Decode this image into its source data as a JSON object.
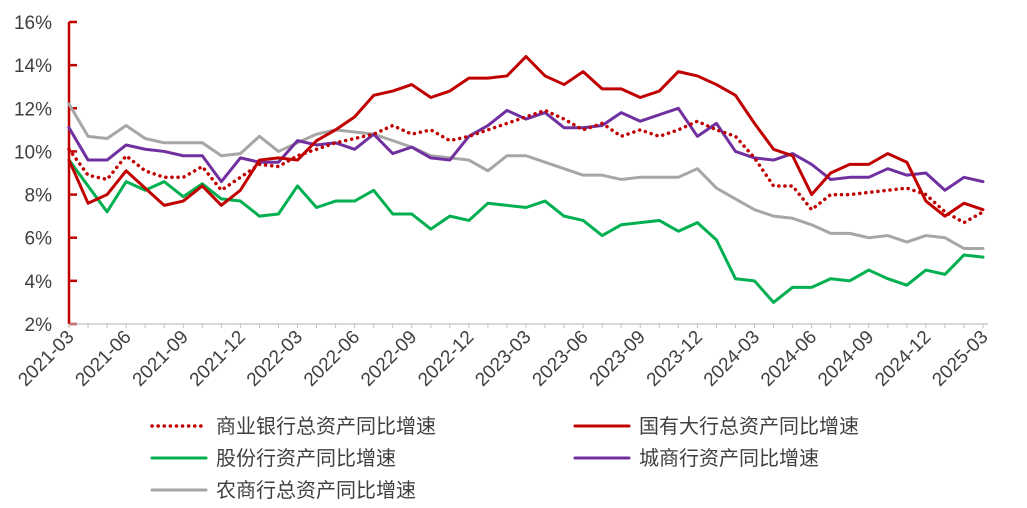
{
  "chart_data": {
    "type": "line",
    "title": "",
    "xlabel": "",
    "ylabel": "",
    "ylim": [
      0.02,
      0.16
    ],
    "y_ticks": [
      "2%",
      "4%",
      "6%",
      "8%",
      "10%",
      "12%",
      "14%",
      "16%"
    ],
    "y_tick_values": [
      0.02,
      0.04,
      0.06,
      0.08,
      0.1,
      0.12,
      0.14,
      0.16
    ],
    "x_tick_labels": [
      "2021-03",
      "2021-06",
      "2021-09",
      "2021-12",
      "2022-03",
      "2022-06",
      "2022-09",
      "2022-12",
      "2023-03",
      "2023-06",
      "2023-09",
      "2023-12",
      "2024-03",
      "2024-06",
      "2024-09",
      "2024-12",
      "2025-03"
    ],
    "x": [
      "2021-03",
      "2021-04",
      "2021-05",
      "2021-06",
      "2021-07",
      "2021-08",
      "2021-09",
      "2021-10",
      "2021-11",
      "2021-12",
      "2022-01",
      "2022-02",
      "2022-03",
      "2022-04",
      "2022-05",
      "2022-06",
      "2022-07",
      "2022-08",
      "2022-09",
      "2022-10",
      "2022-11",
      "2022-12",
      "2023-01",
      "2023-02",
      "2023-03",
      "2023-04",
      "2023-05",
      "2023-06",
      "2023-07",
      "2023-08",
      "2023-09",
      "2023-10",
      "2023-11",
      "2023-12",
      "2024-01",
      "2024-02",
      "2024-03",
      "2024-04",
      "2024-05",
      "2024-06",
      "2024-07",
      "2024-08",
      "2024-09",
      "2024-10",
      "2024-11",
      "2024-12",
      "2025-01",
      "2025-02",
      "2025-03"
    ],
    "grid": false,
    "legend_position": "bottom",
    "series": [
      {
        "name": "商业银行总资产同比增速",
        "color": "#C00000",
        "style": "dotted",
        "values": [
          0.101,
          0.089,
          0.087,
          0.098,
          0.091,
          0.088,
          0.088,
          0.093,
          0.082,
          0.088,
          0.094,
          0.093,
          0.098,
          0.101,
          0.104,
          0.106,
          0.108,
          0.112,
          0.108,
          0.11,
          0.105,
          0.107,
          0.11,
          0.113,
          0.116,
          0.119,
          0.115,
          0.11,
          0.113,
          0.107,
          0.11,
          0.107,
          0.11,
          0.114,
          0.11,
          0.107,
          0.097,
          0.084,
          0.084,
          0.073,
          0.08,
          0.08,
          0.081,
          0.082,
          0.083,
          0.08,
          0.072,
          0.067,
          0.072
        ]
      },
      {
        "name": "国有大行总资产同比增速",
        "color": "#C00000",
        "style": "solid",
        "values": [
          0.096,
          0.076,
          0.08,
          0.091,
          0.083,
          0.075,
          0.077,
          0.084,
          0.075,
          0.082,
          0.096,
          0.097,
          0.096,
          0.105,
          0.11,
          0.116,
          0.126,
          0.128,
          0.131,
          0.125,
          0.128,
          0.134,
          0.134,
          0.135,
          0.144,
          0.135,
          0.131,
          0.137,
          0.129,
          0.129,
          0.125,
          0.128,
          0.137,
          0.135,
          0.131,
          0.126,
          0.113,
          0.101,
          0.098,
          0.08,
          0.09,
          0.094,
          0.094,
          0.099,
          0.095,
          0.077,
          0.07,
          0.076,
          0.073
        ]
      },
      {
        "name": "股份行资产同比增速",
        "color": "#00B050",
        "style": "solid",
        "values": [
          0.096,
          0.084,
          0.072,
          0.086,
          0.082,
          0.086,
          0.079,
          0.085,
          0.078,
          0.077,
          0.07,
          0.071,
          0.084,
          0.074,
          0.077,
          0.077,
          0.082,
          0.071,
          0.071,
          0.064,
          0.07,
          0.068,
          0.076,
          0.075,
          0.074,
          0.077,
          0.07,
          0.068,
          0.061,
          0.066,
          0.067,
          0.068,
          0.063,
          0.067,
          0.059,
          0.041,
          0.04,
          0.03,
          0.037,
          0.037,
          0.041,
          0.04,
          0.045,
          0.041,
          0.038,
          0.045,
          0.043,
          0.052,
          0.051
        ]
      },
      {
        "name": "城商行资产同比增速",
        "color": "#7030A0",
        "style": "solid",
        "values": [
          0.111,
          0.096,
          0.096,
          0.103,
          0.101,
          0.1,
          0.098,
          0.098,
          0.086,
          0.097,
          0.095,
          0.095,
          0.105,
          0.103,
          0.104,
          0.101,
          0.108,
          0.099,
          0.102,
          0.097,
          0.096,
          0.107,
          0.112,
          0.119,
          0.115,
          0.118,
          0.111,
          0.111,
          0.112,
          0.118,
          0.114,
          0.117,
          0.12,
          0.107,
          0.113,
          0.1,
          0.097,
          0.096,
          0.099,
          0.094,
          0.087,
          0.088,
          0.088,
          0.092,
          0.089,
          0.09,
          0.082,
          0.088,
          0.086
        ]
      },
      {
        "name": "农商行总资产同比增速",
        "color": "#A6A6A6",
        "style": "solid",
        "values": [
          0.122,
          0.107,
          0.106,
          0.112,
          0.106,
          0.104,
          0.104,
          0.104,
          0.098,
          0.099,
          0.107,
          0.1,
          0.104,
          0.108,
          0.11,
          0.109,
          0.108,
          0.105,
          0.102,
          0.098,
          0.097,
          0.096,
          0.091,
          0.098,
          0.098,
          0.095,
          0.092,
          0.089,
          0.089,
          0.087,
          0.088,
          0.088,
          0.088,
          0.092,
          0.083,
          0.078,
          0.073,
          0.07,
          0.069,
          0.066,
          0.062,
          0.062,
          0.06,
          0.061,
          0.058,
          0.061,
          0.06,
          0.055,
          0.055
        ]
      }
    ]
  }
}
